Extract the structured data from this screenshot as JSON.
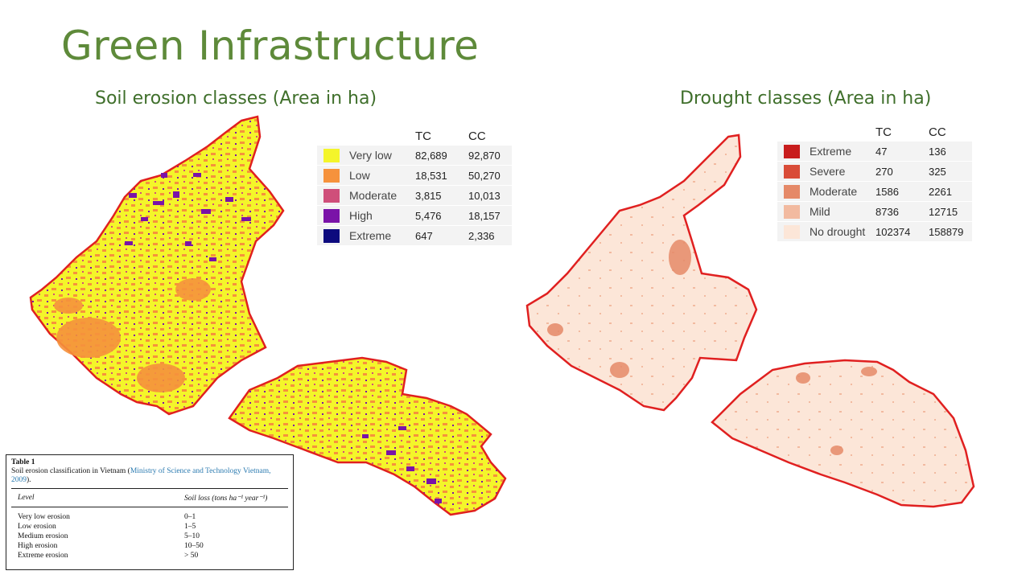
{
  "slide_title": "Green Infrastructure",
  "left_map": {
    "title": "Soil erosion classes (Area  in ha)",
    "columns": [
      "TC",
      "CC"
    ],
    "rows": [
      {
        "label": "Very low",
        "tc": "82,689",
        "cc": "92,870",
        "color": "#f4f52a"
      },
      {
        "label": "Low",
        "tc": "18,531",
        "cc": "50,270",
        "color": "#f6923c"
      },
      {
        "label": "Moderate",
        "tc": "3,815",
        "cc": "10,013",
        "color": "#cf4f7a"
      },
      {
        "label": "High",
        "tc": "5,476",
        "cc": "18,157",
        "color": "#7a13a8"
      },
      {
        "label": "Extreme",
        "tc": "647",
        "cc": "2,336",
        "color": "#0d0a7e"
      }
    ]
  },
  "right_map": {
    "title": "Drought classes (Area  in ha)",
    "columns": [
      "TC",
      "CC"
    ],
    "rows": [
      {
        "label": "Extreme",
        "tc": "47",
        "cc": "136",
        "color": "#c81d1d"
      },
      {
        "label": "Severe",
        "tc": "270",
        "cc": "325",
        "color": "#d94c38"
      },
      {
        "label": "Moderate",
        "tc": "1586",
        "cc": "2261",
        "color": "#e58968"
      },
      {
        "label": "Mild",
        "tc": "8736",
        "cc": "12715",
        "color": "#f2baa0"
      },
      {
        "label": "No drought",
        "tc": "102374",
        "cc": "158879",
        "color": "#fce6d8"
      }
    ]
  },
  "table1": {
    "caption": "Table 1",
    "description": "Soil erosion classification in Vietnam (",
    "citation": "Ministry of Science and Technology Vietnam, 2009",
    "description_end": ").",
    "header": {
      "level": "Level",
      "soil_loss": "Soil loss (tons ha⁻¹ year⁻¹)"
    },
    "rows": [
      {
        "level": "Very low erosion",
        "loss": "0–1"
      },
      {
        "level": "Low erosion",
        "loss": "1–5"
      },
      {
        "level": "Medium erosion",
        "loss": "5–10"
      },
      {
        "level": "High erosion",
        "loss": "10–50"
      },
      {
        "level": "Extreme erosion",
        "loss": "> 50"
      }
    ]
  }
}
